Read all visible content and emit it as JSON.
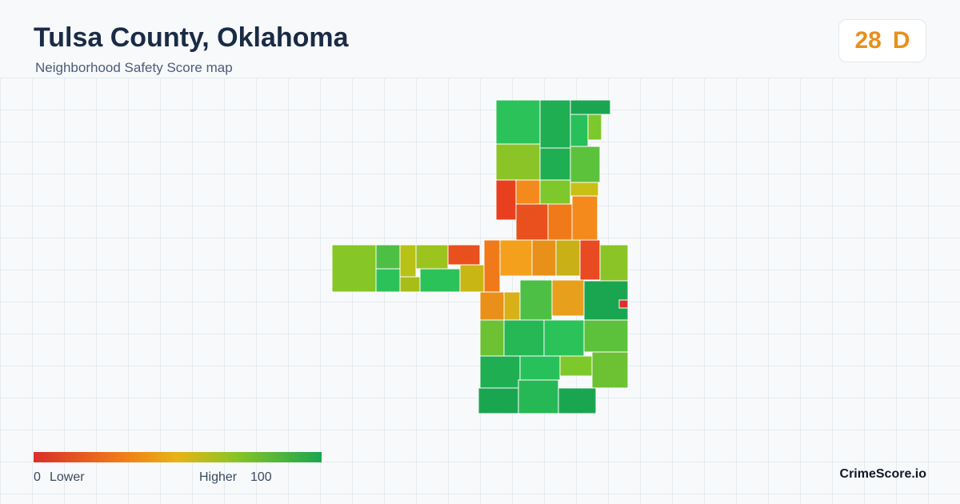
{
  "header": {
    "title": "Tulsa County, Oklahoma",
    "subtitle": "Neighborhood Safety Score map"
  },
  "score": {
    "value": 28,
    "grade": "D"
  },
  "legend": {
    "min": 0,
    "min_label": "Lower",
    "max_label": "Higher",
    "max": 100
  },
  "brand": "CrimeScore.io"
}
